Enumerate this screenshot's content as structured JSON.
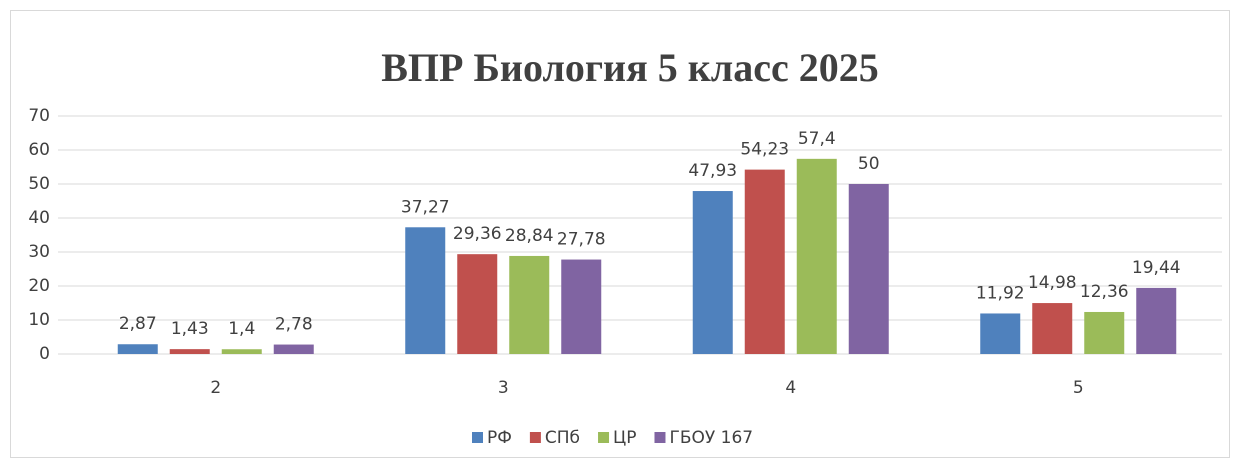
{
  "chart_data": {
    "type": "bar",
    "title": "ВПР Биология 5 класс 2025",
    "categories": [
      "2",
      "3",
      "4",
      "5"
    ],
    "series": [
      {
        "name": "РФ",
        "color": "#4f81bd",
        "values": [
          2.87,
          37.27,
          47.93,
          11.92
        ],
        "value_labels": [
          "2,87",
          "37,27",
          "47,93",
          "11,92"
        ]
      },
      {
        "name": "СПб",
        "color": "#c0504d",
        "values": [
          1.43,
          29.36,
          54.23,
          14.98
        ],
        "value_labels": [
          "1,43",
          "29,36",
          "54,23",
          "14,98"
        ]
      },
      {
        "name": "ЦР",
        "color": "#9bbb59",
        "values": [
          1.4,
          28.84,
          57.4,
          12.36
        ],
        "value_labels": [
          "1,4",
          "28,84",
          "57,4",
          "12,36"
        ]
      },
      {
        "name": "ГБОУ 167",
        "color": "#8064a2",
        "values": [
          2.78,
          27.78,
          50,
          19.44
        ],
        "value_labels": [
          "2,78",
          "27,78",
          "50",
          "19,44"
        ]
      }
    ],
    "ylim": [
      0,
      70
    ],
    "yticks": [
      0,
      10,
      20,
      30,
      40,
      50,
      60,
      70
    ],
    "grid": true,
    "legend": "bottom"
  }
}
